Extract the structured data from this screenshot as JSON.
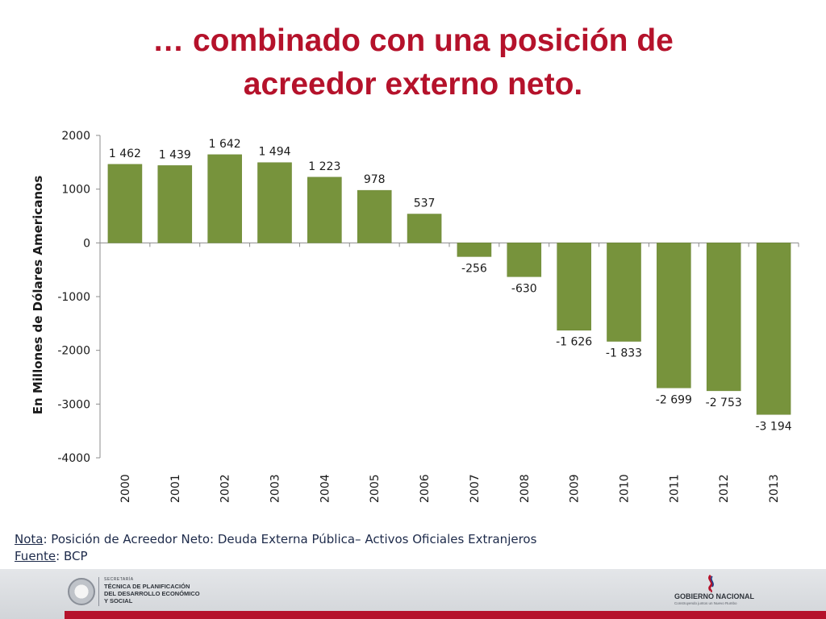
{
  "slide": {
    "title_line1": "… combinado con una posición de",
    "title_line2": "acreedor externo neto."
  },
  "notes": {
    "nota_label": "Nota",
    "nota_text": ": Posición de Acreedor Neto: Deuda Externa Pública– Activos Oficiales Extranjeros",
    "fuente_label": "Fuente",
    "fuente_text": ": BCP"
  },
  "footer": {
    "secretaria_small": "SECRETARÍA",
    "secretaria_line1": "TÉCNICA DE PLANIFICACIÓN",
    "secretaria_line2": "DEL DESARROLLO ECONÓMICO",
    "secretaria_line3": "Y SOCIAL",
    "gobierno": "GOBIERNO NACIONAL",
    "gobierno_slogan": "Construyendo juntos un Nuevo Rumbo"
  },
  "colors": {
    "title": "#b5122b",
    "bar": "#77933c",
    "axis": "#8c8c8c",
    "text": "#1a1a1a",
    "footer_red": "#b5122b"
  },
  "chart_data": {
    "type": "bar",
    "title": "",
    "xlabel": "",
    "ylabel": "En Millones de Dólares Americanos",
    "categories": [
      "2000",
      "2001",
      "2002",
      "2003",
      "2004",
      "2005",
      "2006",
      "2007",
      "2008",
      "2009",
      "2010",
      "2011",
      "2012",
      "2013"
    ],
    "values": [
      1462,
      1439,
      1642,
      1494,
      1223,
      978,
      537,
      -256,
      -630,
      -1626,
      -1833,
      -2699,
      -2753,
      -3194
    ],
    "data_labels": [
      "1 462",
      "1 439",
      "1 642",
      "1 494",
      "1 223",
      "978",
      "537",
      "-256",
      "-630",
      "-1 626",
      "-1 833",
      "-2 699",
      "-2 753",
      "-3 194"
    ],
    "ylim": [
      -4000,
      2000
    ],
    "yticks": [
      2000,
      1000,
      0,
      -1000,
      -2000,
      -3000,
      -4000
    ],
    "ytick_labels": [
      "2000",
      "1000",
      "0",
      "-1000",
      "-2000",
      "-3000",
      "-4000"
    ],
    "grid": false,
    "legend": "none",
    "x_tick_rotation": "vertical"
  }
}
